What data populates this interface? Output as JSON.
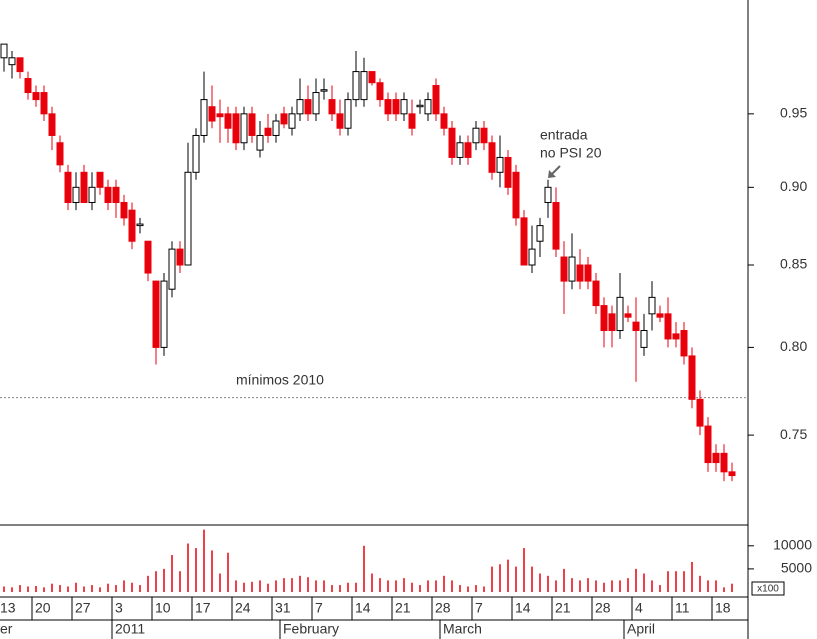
{
  "chart_data": {
    "type": "candlestick",
    "categories": [
      "13",
      null,
      null,
      null,
      null,
      "20",
      null,
      null,
      null,
      null,
      "27",
      null,
      null,
      null,
      null,
      "3",
      null,
      null,
      null,
      null,
      "10",
      null,
      null,
      null,
      null,
      "17",
      null,
      null,
      null,
      null,
      "24",
      null,
      null,
      null,
      null,
      "31",
      null,
      null,
      null,
      null,
      "7",
      null,
      null,
      null,
      null,
      "14",
      null,
      null,
      null,
      null,
      "21",
      null,
      null,
      null,
      null,
      "28",
      null,
      null,
      null,
      null,
      "7",
      null,
      null,
      null,
      null,
      "14",
      null,
      null,
      null,
      null,
      "21",
      null,
      null,
      null,
      null,
      "28",
      null,
      null,
      null,
      null,
      "4",
      null,
      null,
      null,
      null,
      "11",
      null,
      null,
      null,
      null,
      "18",
      null,
      null
    ],
    "months": [
      "er",
      null,
      null,
      null,
      null,
      null,
      null,
      null,
      null,
      null,
      null,
      null,
      null,
      null,
      null,
      "2011",
      null,
      null,
      null,
      null,
      null,
      null,
      null,
      null,
      null,
      null,
      null,
      null,
      null,
      null,
      null,
      null,
      null,
      null,
      null,
      null,
      "February",
      null,
      null,
      null,
      null,
      null,
      null,
      null,
      null,
      null,
      null,
      null,
      null,
      null,
      null,
      null,
      null,
      null,
      null,
      null,
      "March",
      null,
      null,
      null,
      null,
      null,
      null,
      null,
      null,
      null,
      null,
      null,
      null,
      null,
      null,
      null,
      null,
      null,
      null,
      null,
      null,
      null,
      null,
      "April",
      null,
      null,
      null,
      null,
      null,
      null,
      null,
      null,
      null,
      null,
      null,
      null,
      null
    ],
    "open": [
      0.99,
      0.99,
      0.985,
      0.99,
      0.975,
      0.965,
      0.965,
      0.95,
      0.93,
      0.91,
      0.89,
      0.91,
      0.89,
      0.91,
      0.9,
      0.9,
      0.89,
      0.885,
      0.875,
      0.865,
      0.84,
      0.8,
      0.835,
      0.86,
      0.85,
      0.91,
      0.935,
      0.955,
      0.95,
      0.95,
      0.95,
      0.93,
      0.95,
      0.925,
      0.94,
      0.935,
      0.95,
      0.94,
      0.95,
      0.96,
      0.95,
      0.966,
      0.96,
      0.95,
      0.94,
      0.96,
      0.96,
      0.98,
      0.972,
      0.96,
      0.96,
      0.95,
      0.95,
      0.955,
      0.95,
      0.97,
      0.95,
      0.94,
      0.92,
      0.93,
      0.93,
      0.94,
      0.93,
      0.91,
      0.92,
      0.91,
      0.88,
      0.85,
      0.865,
      0.89,
      0.89,
      0.855,
      0.84,
      0.85,
      0.85,
      0.84,
      0.825,
      0.82,
      0.81,
      0.82,
      0.815,
      0.8,
      0.82,
      0.82,
      0.82,
      0.808,
      0.81,
      0.795,
      0.77,
      0.755,
      0.74,
      0.74,
      0.73
    ],
    "high": [
      1.0,
      1.0,
      0.995,
      0.99,
      0.98,
      0.97,
      0.97,
      0.955,
      0.935,
      0.915,
      0.91,
      0.915,
      0.91,
      0.91,
      0.905,
      0.905,
      0.895,
      0.89,
      0.88,
      0.865,
      0.84,
      0.845,
      0.865,
      0.865,
      0.93,
      0.94,
      0.98,
      0.97,
      0.96,
      0.955,
      0.955,
      0.955,
      0.955,
      0.945,
      0.95,
      0.95,
      0.955,
      0.955,
      0.975,
      0.97,
      0.975,
      0.975,
      0.97,
      0.96,
      0.965,
      0.995,
      0.99,
      0.98,
      0.975,
      0.965,
      0.965,
      0.965,
      0.96,
      0.96,
      0.965,
      0.975,
      0.955,
      0.945,
      0.935,
      0.935,
      0.945,
      0.945,
      0.935,
      0.935,
      0.925,
      0.915,
      0.885,
      0.875,
      0.88,
      0.905,
      0.9,
      0.865,
      0.87,
      0.86,
      0.855,
      0.845,
      0.83,
      0.825,
      0.845,
      0.825,
      0.83,
      0.82,
      0.84,
      0.825,
      0.83,
      0.815,
      0.815,
      0.8,
      0.775,
      0.76,
      0.745,
      0.745,
      0.735
    ],
    "low": [
      0.98,
      0.98,
      0.975,
      0.975,
      0.96,
      0.955,
      0.945,
      0.925,
      0.91,
      0.885,
      0.885,
      0.89,
      0.885,
      0.895,
      0.885,
      0.88,
      0.875,
      0.86,
      0.87,
      0.84,
      0.79,
      0.795,
      0.83,
      0.845,
      0.85,
      0.905,
      0.93,
      0.94,
      0.93,
      0.93,
      0.925,
      0.925,
      0.93,
      0.92,
      0.93,
      0.93,
      0.94,
      0.935,
      0.945,
      0.945,
      0.945,
      0.96,
      0.945,
      0.935,
      0.935,
      0.955,
      0.955,
      0.97,
      0.955,
      0.945,
      0.945,
      0.945,
      0.935,
      0.95,
      0.945,
      0.945,
      0.935,
      0.915,
      0.915,
      0.915,
      0.925,
      0.925,
      0.905,
      0.9,
      0.895,
      0.875,
      0.85,
      0.845,
      0.855,
      0.88,
      0.855,
      0.82,
      0.835,
      0.835,
      0.835,
      0.82,
      0.8,
      0.8,
      0.805,
      0.815,
      0.78,
      0.795,
      0.81,
      0.815,
      0.8,
      0.8,
      0.79,
      0.765,
      0.75,
      0.73,
      0.73,
      0.725,
      0.725
    ],
    "close": [
      1.0,
      1.0,
      0.99,
      0.98,
      0.965,
      0.96,
      0.95,
      0.935,
      0.915,
      0.89,
      0.9,
      0.89,
      0.9,
      0.9,
      0.89,
      0.89,
      0.88,
      0.865,
      0.876,
      0.845,
      0.8,
      0.84,
      0.86,
      0.85,
      0.91,
      0.935,
      0.96,
      0.945,
      0.948,
      0.94,
      0.93,
      0.95,
      0.935,
      0.935,
      0.935,
      0.945,
      0.943,
      0.95,
      0.96,
      0.95,
      0.965,
      0.967,
      0.95,
      0.94,
      0.96,
      0.98,
      0.98,
      0.972,
      0.96,
      0.95,
      0.95,
      0.96,
      0.94,
      0.956,
      0.96,
      0.95,
      0.94,
      0.92,
      0.93,
      0.92,
      0.94,
      0.93,
      0.91,
      0.92,
      0.9,
      0.88,
      0.85,
      0.86,
      0.875,
      0.9,
      0.86,
      0.84,
      0.855,
      0.84,
      0.84,
      0.825,
      0.81,
      0.81,
      0.83,
      0.818,
      0.81,
      0.81,
      0.83,
      0.818,
      0.805,
      0.805,
      0.795,
      0.77,
      0.755,
      0.735,
      0.735,
      0.73,
      0.728
    ],
    "volume": [
      1500,
      1200,
      1000,
      1500,
      1200,
      1300,
      1000,
      1800,
      1500,
      1200,
      2000,
      1200,
      1500,
      1000,
      1800,
      1500,
      2500,
      2000,
      1500,
      3500,
      4500,
      5000,
      8000,
      4500,
      10500,
      9500,
      13500,
      9000,
      4000,
      8500,
      2500,
      2000,
      2200,
      2500,
      1800,
      2500,
      3000,
      3000,
      3500,
      3200,
      2500,
      2500,
      1500,
      1500,
      2000,
      2000,
      10000,
      4000,
      3000,
      2500,
      2500,
      3000,
      2000,
      1500,
      2500,
      2500,
      3500,
      2500,
      1500,
      1200,
      1500,
      1200,
      5500,
      6000,
      7000,
      5500,
      9500,
      5500,
      4000,
      3500,
      2500,
      5000,
      3000,
      2500,
      3000,
      2500,
      2000,
      2500,
      2500,
      3000,
      5000,
      4000,
      2500,
      1500,
      4500,
      4500,
      4500,
      6500,
      3500,
      2500,
      2500,
      1000,
      1800
    ],
    "up_color": "#ffffff",
    "down_color": "#e8000b",
    "volume_color": "#e8000b",
    "ylog": true,
    "ylim": [
      0.702,
      1.033
    ],
    "yticks": [
      0.75,
      {
        "value": 0.8,
        "label": "0.80"
      },
      0.85,
      {
        "value": 0.9,
        "label": "0.90"
      },
      0.95
    ],
    "volume_ylim": [
      0,
      14500
    ],
    "volume_yticks": [
      5000,
      10000
    ],
    "volume_unit": "x100",
    "reference_line": {
      "text": "mínimos 2010",
      "value": 0.771
    },
    "annotation": [
      "entrada",
      "no PSI 20"
    ]
  }
}
